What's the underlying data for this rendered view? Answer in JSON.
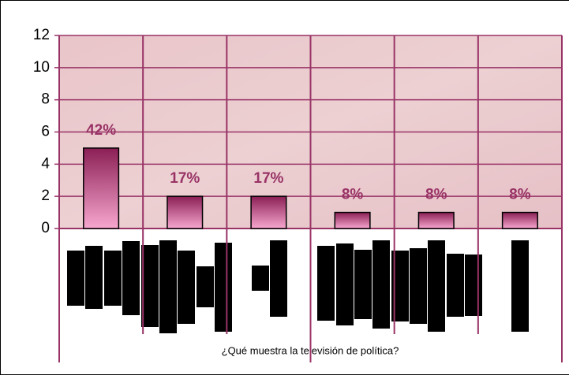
{
  "chart_data": {
    "type": "bar",
    "x_label": "¿Qué muestra la televisión de política?",
    "categories": [
      null,
      null,
      null,
      null,
      null,
      null
    ],
    "values": [
      5,
      2,
      2,
      1,
      1,
      1
    ],
    "value_labels": [
      "42%",
      "17%",
      "17%",
      "8%",
      "8%",
      "8%"
    ],
    "ylim": [
      0,
      12
    ],
    "yticks": [
      0,
      2,
      4,
      6,
      8,
      10,
      12
    ],
    "grid": true
  }
}
